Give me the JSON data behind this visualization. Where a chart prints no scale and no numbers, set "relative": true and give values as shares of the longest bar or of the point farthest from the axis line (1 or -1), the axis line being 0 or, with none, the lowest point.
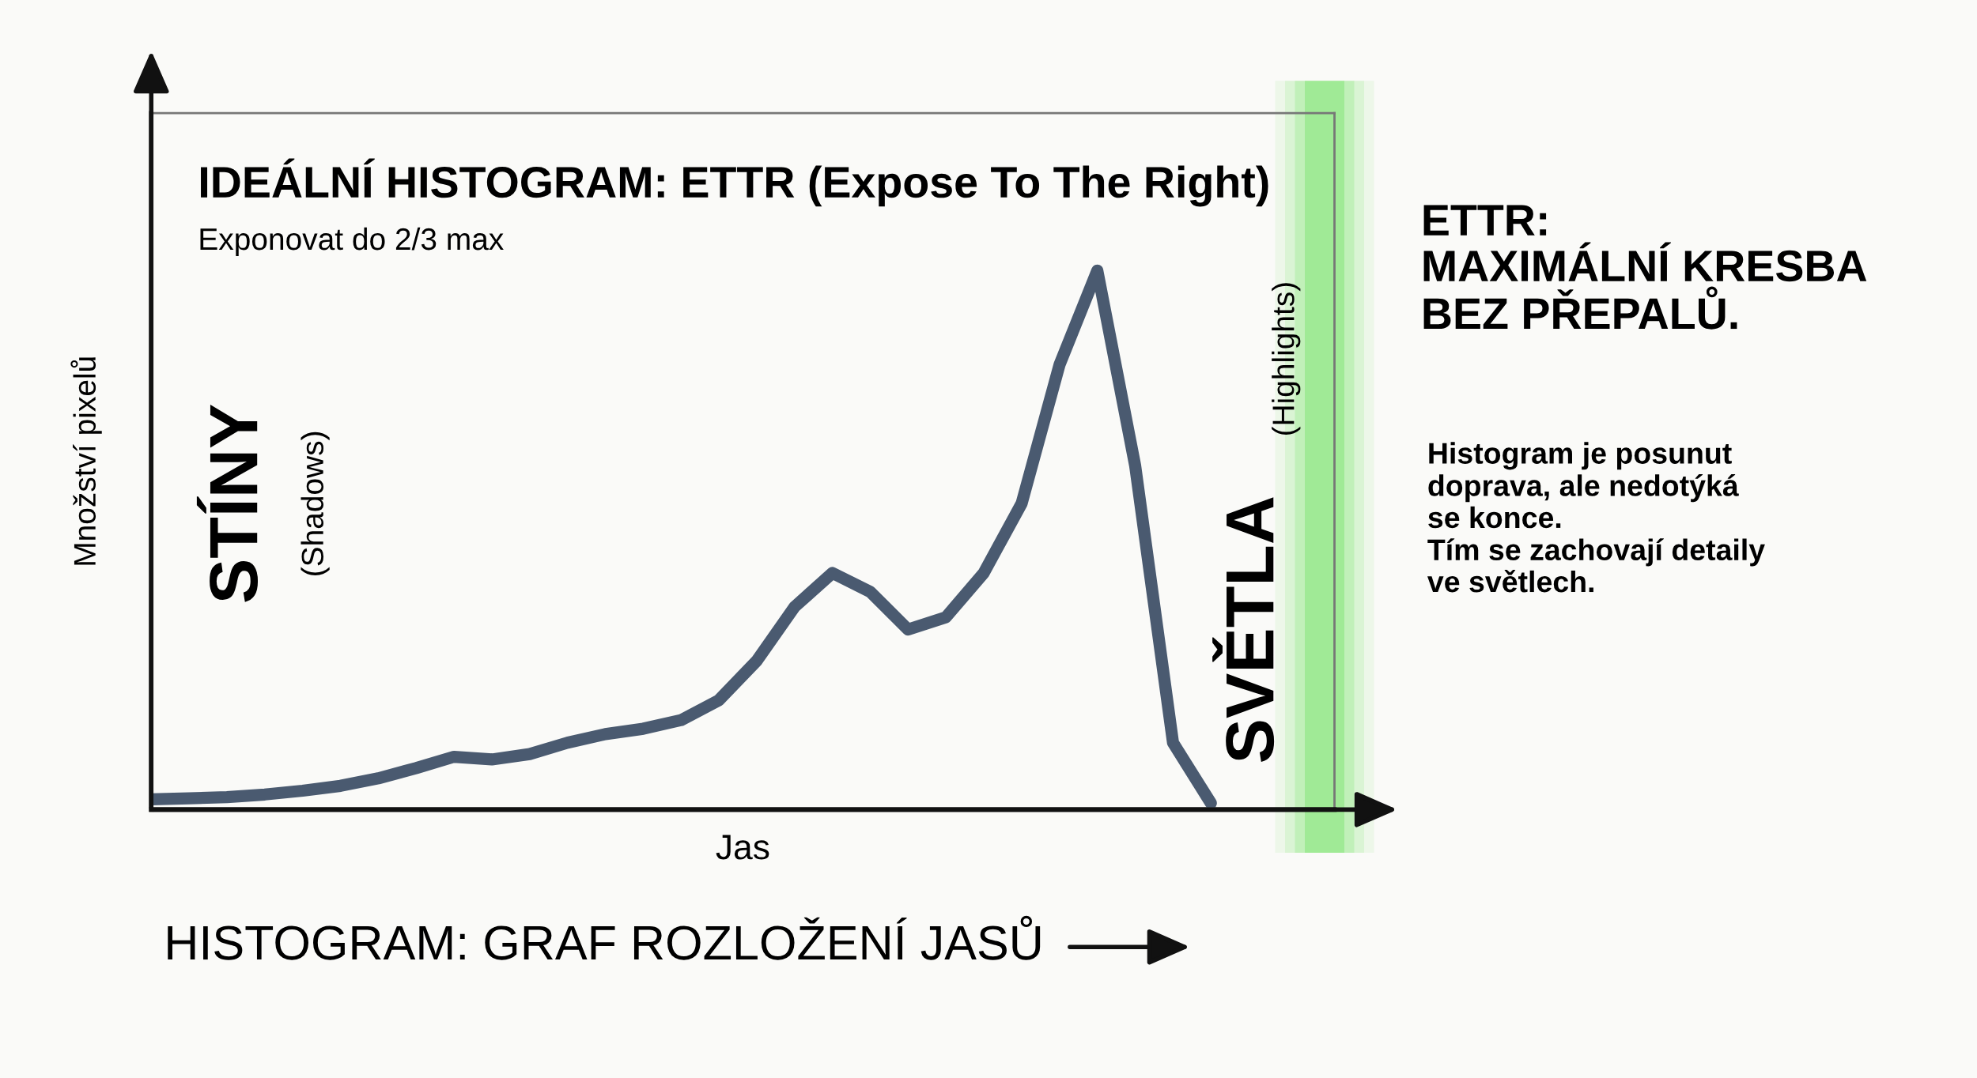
{
  "chart_data": {
    "type": "line",
    "title": "IDEÁLNÍ HISTOGRAM: ETTR (Expose To The Right)",
    "subtitle": "Exponovat do 2/3 max",
    "xlabel": "Jas",
    "ylabel": "Množství pixelů",
    "categories": [
      null,
      null,
      null,
      null,
      null,
      null,
      null,
      null,
      null,
      null,
      null,
      null,
      null,
      null,
      null,
      null,
      null,
      null,
      null,
      null,
      null,
      null,
      null,
      null,
      null,
      null,
      null,
      null,
      null
    ],
    "relative": true,
    "series": [
      {
        "color": "#4a5a70",
        "values": [
          0.019,
          0.021,
          0.023,
          0.028,
          0.035,
          0.044,
          0.058,
          0.077,
          0.098,
          0.093,
          0.103,
          0.124,
          0.14,
          0.15,
          0.166,
          0.203,
          0.276,
          0.376,
          0.439,
          0.404,
          0.334,
          0.357,
          0.439,
          0.568,
          0.825,
          1.0,
          0.638,
          0.124,
          0.012
        ]
      }
    ],
    "annotations": [
      "STÍNY",
      "(Shadows)",
      "SVĚTLA",
      "(Highlights)",
      "ETTR:\nMAXIMÁLNÍ KRESBA\nBEZ PŘEPALŮ.",
      "Histogram je posunut\ndoprava, ale nedotýká\nse konce.\nTím se zachovají detaily\nve světlech.",
      "HISTOGRAM: GRAF ROZLOŽENÍ JASŮ"
    ],
    "tick_labels": false,
    "grid": false,
    "legend": false,
    "line_style": "solid"
  }
}
